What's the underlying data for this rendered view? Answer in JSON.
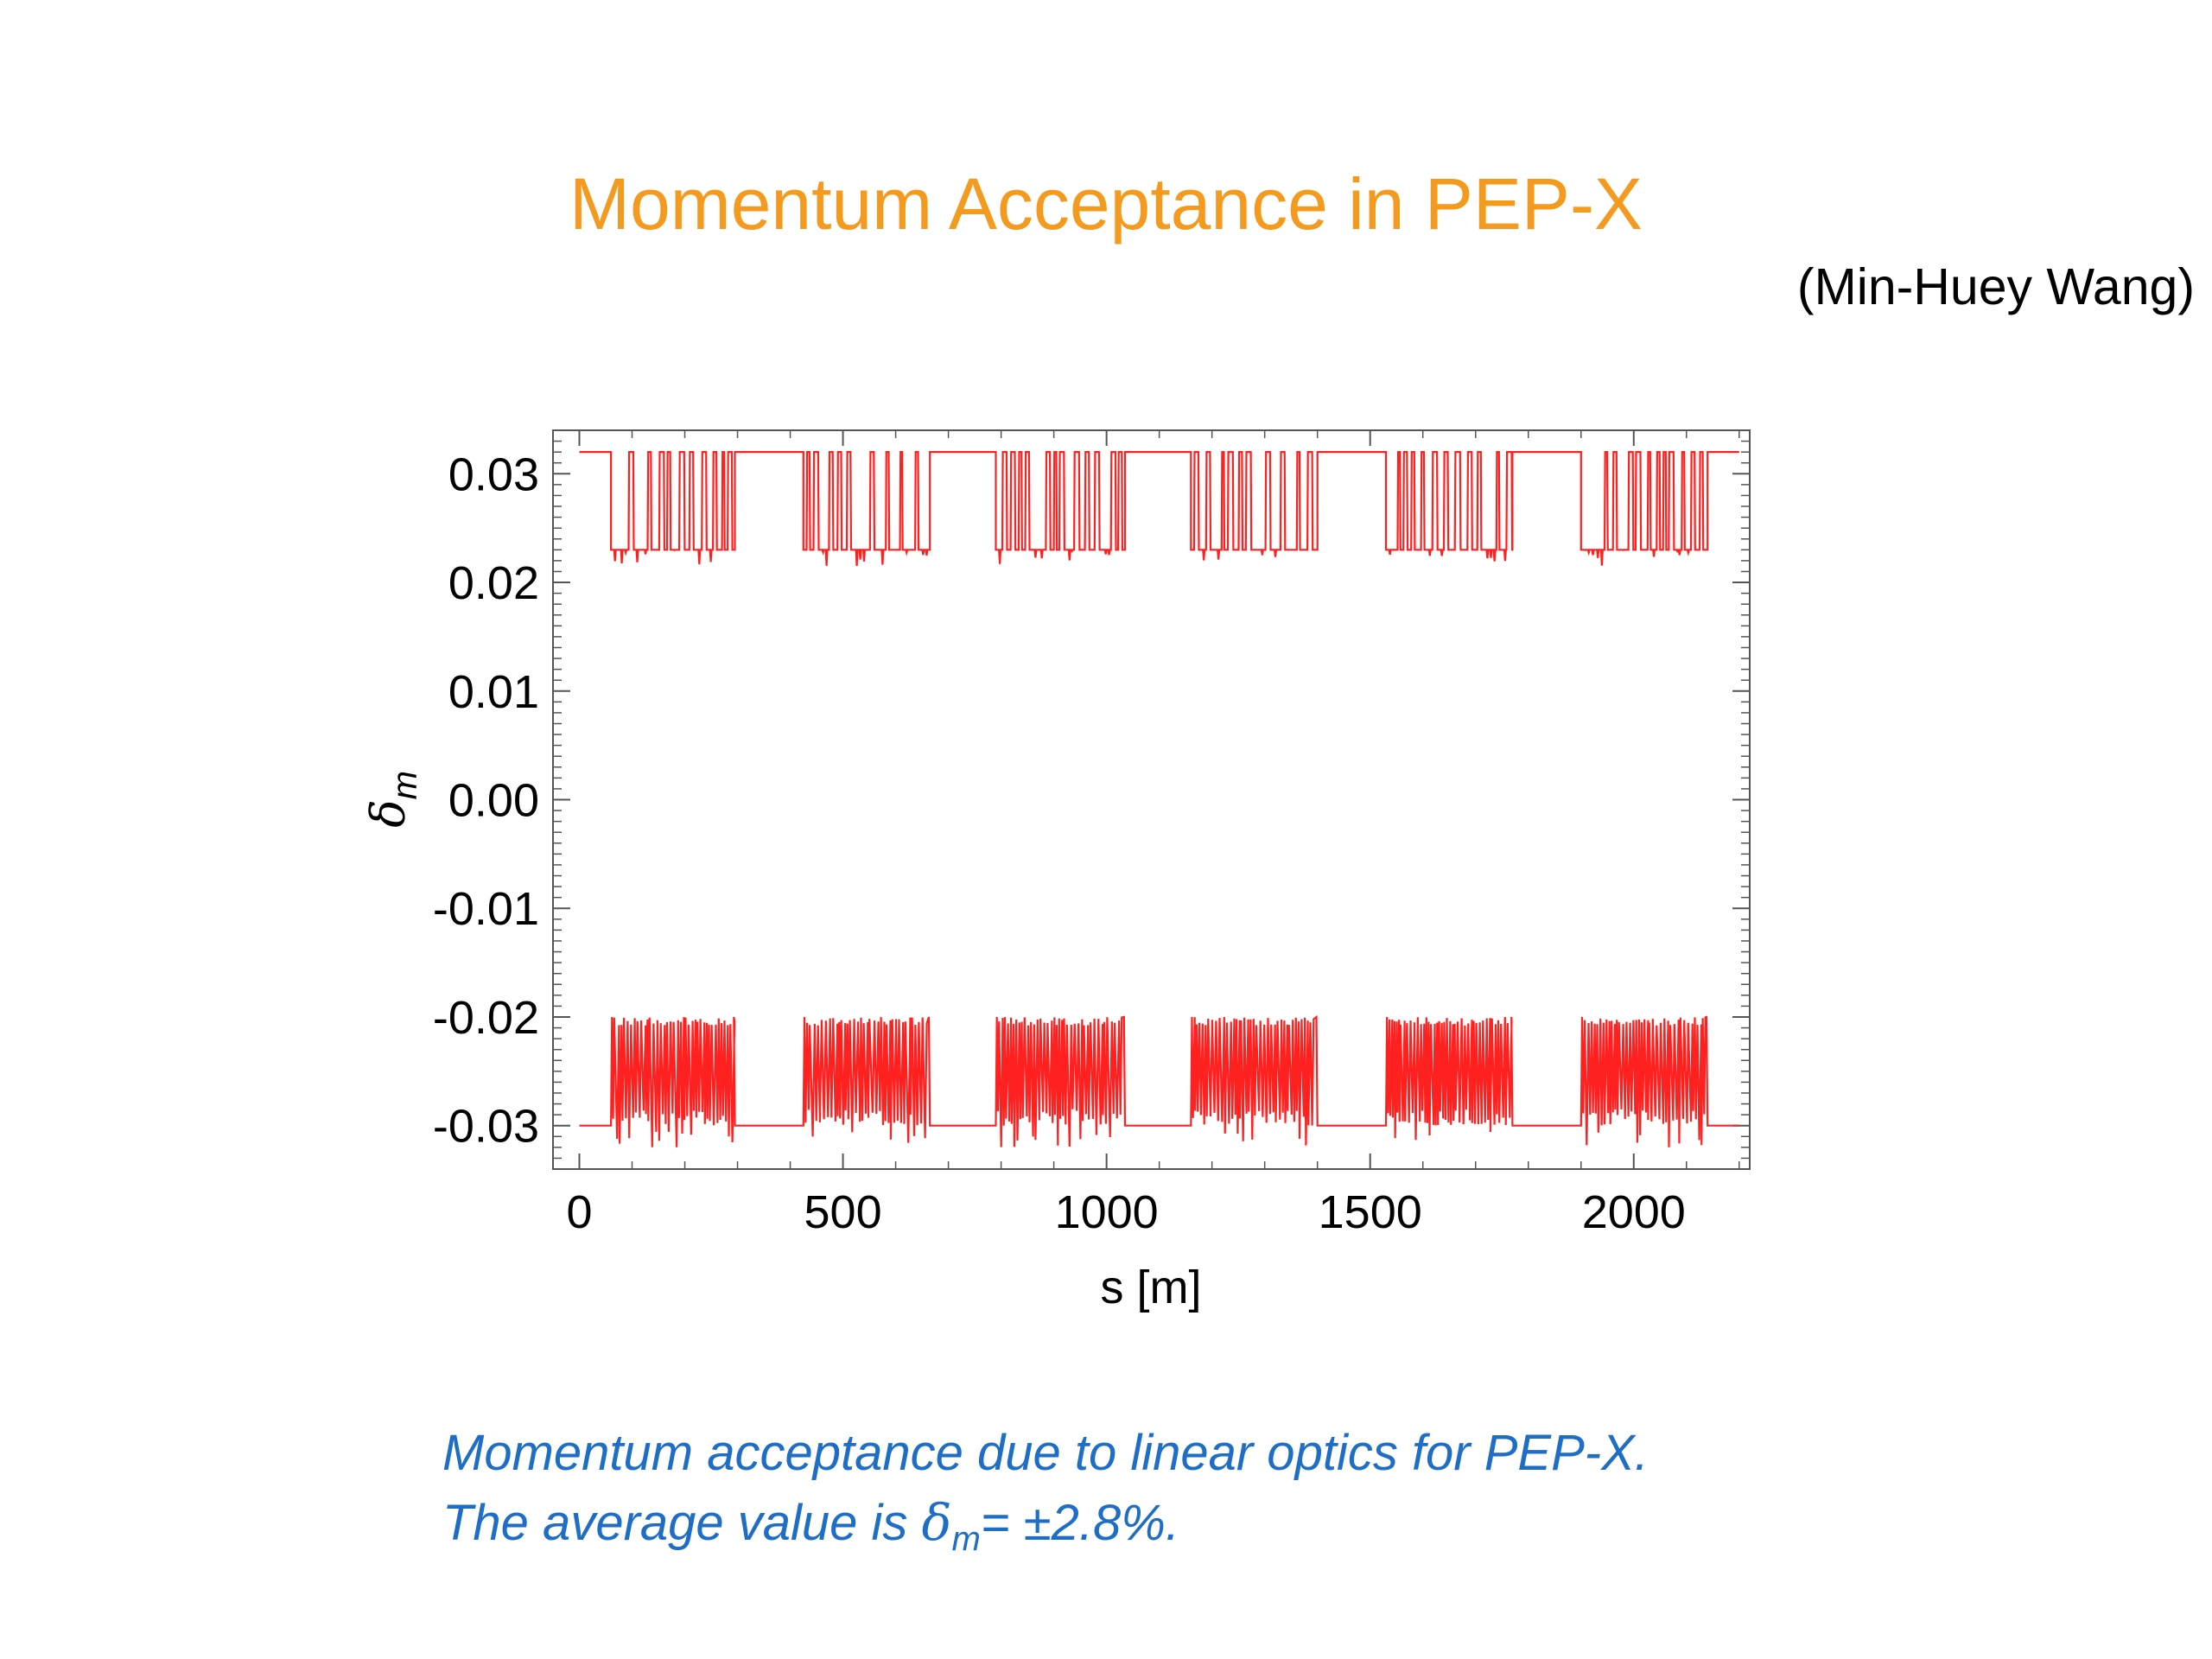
{
  "slide": {
    "title": "Momentum Acceptance in PEP-X",
    "author": "(Min-Huey Wang)",
    "caption_line1": "Momentum acceptance due to linear optics for PEP-X.",
    "caption_line2_prefix": "The average value is ",
    "caption_symbol": "δ",
    "caption_subscript": "m",
    "caption_line2_suffix": "= ±2.8%."
  },
  "chart_data": {
    "type": "line",
    "title": "",
    "xlabel": "s [m]",
    "ylabel_symbol": "δ",
    "ylabel_subscript": "m",
    "xlim": [
      -50,
      2220
    ],
    "ylim": [
      -0.034,
      0.034
    ],
    "xticks": [
      0,
      500,
      1000,
      1500,
      2000
    ],
    "xtick_labels": [
      "0",
      "500",
      "1000",
      "1500",
      "2000"
    ],
    "yticks": [
      0.03,
      0.02,
      0.01,
      0.0,
      -0.01,
      -0.02,
      -0.03
    ],
    "ytick_labels": [
      "0.03",
      "0.02",
      "0.01",
      "0.00",
      "-0.01",
      "-0.02",
      "-0.03"
    ],
    "line_color": "#ff2020",
    "s_range": [
      0,
      2200
    ],
    "baseline_upper": 0.032,
    "baseline_lower": -0.03,
    "arc_sections": [
      [
        60,
        295
      ],
      [
        425,
        665
      ],
      [
        790,
        1035
      ],
      [
        1160,
        1400
      ],
      [
        1530,
        1770
      ],
      [
        1900,
        2140
      ]
    ],
    "arc_upper_level": 0.023,
    "arc_upper_min": 0.0215,
    "arc_lower_level": -0.02,
    "arc_lower_min": -0.032,
    "series": [
      {
        "name": "",
        "summary": "upper momentum acceptance"
      },
      {
        "name": "",
        "summary": "lower momentum acceptance"
      }
    ]
  }
}
